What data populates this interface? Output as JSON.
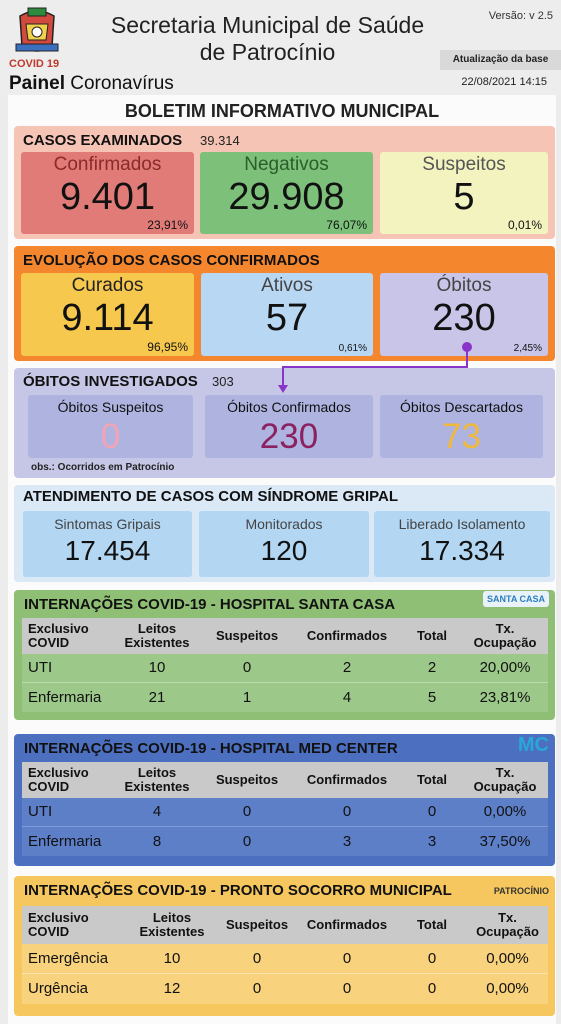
{
  "header": {
    "covid_tag": "COVID 19",
    "painel_bold": "Painel",
    "painel_rest": "Coronavírus",
    "title_line1": "Secretaria Municipal de Saúde",
    "title_line2": "de Patrocínio",
    "version": "Versão: v 2.5",
    "update_label": "Atualização da base",
    "update_date": "22/08/2021 14:15"
  },
  "board_title": "BOLETIM INFORMATIVO MUNICIPAL",
  "casos_examinados": {
    "title": "CASOS EXAMINADOS",
    "total": "39.314",
    "cards": [
      {
        "label": "Confirmados",
        "value": "9.401",
        "pct": "23,91%"
      },
      {
        "label": "Negativos",
        "value": "29.908",
        "pct": "76,07%"
      },
      {
        "label": "Suspeitos",
        "value": "5",
        "pct": "0,01%"
      }
    ]
  },
  "evolucao": {
    "title": "EVOLUÇÃO DOS CASOS CONFIRMADOS",
    "cards": [
      {
        "label": "Curados",
        "value": "9.114",
        "pct": "96,95%"
      },
      {
        "label": "Ativos",
        "value": "57",
        "pct": "0,61%"
      },
      {
        "label": "Óbitos",
        "value": "230",
        "pct": "2,45%"
      }
    ]
  },
  "obitos": {
    "title": "ÓBITOS INVESTIGADOS",
    "total": "303",
    "note": "obs.: Ocorridos em Patrocínio",
    "cards": [
      {
        "label": "Óbitos Suspeitos",
        "value": "0"
      },
      {
        "label": "Óbitos Confirmados",
        "value": "230"
      },
      {
        "label": "Óbitos Descartados",
        "value": "73"
      }
    ]
  },
  "sindrome": {
    "title": "ATENDIMENTO DE CASOS COM SÍNDROME GRIPAL",
    "cards": [
      {
        "label": "Sintomas Gripais",
        "value": "17.454"
      },
      {
        "label": "Monitorados",
        "value": "120"
      },
      {
        "label": "Liberado Isolamento",
        "value": "17.334"
      }
    ]
  },
  "hospitals": [
    {
      "title": "INTERNAÇÕES COVID-19 - HOSPITAL SANTA CASA",
      "logo_text": "SANTA CASA",
      "headers": [
        [
          "Exclusivo",
          "COVID"
        ],
        [
          "Leitos",
          "Existentes"
        ],
        [
          "Suspeitos",
          ""
        ],
        [
          "Confirmados",
          ""
        ],
        [
          "Total",
          ""
        ],
        [
          "Tx.",
          "Ocupação"
        ]
      ],
      "rows": [
        [
          "UTI",
          "10",
          "0",
          "2",
          "2",
          "20,00%"
        ],
        [
          "Enfermaria",
          "21",
          "1",
          "4",
          "5",
          "23,81%"
        ]
      ]
    },
    {
      "title": "INTERNAÇÕES COVID-19 - HOSPITAL MED CENTER",
      "logo_text": "MC",
      "headers": [
        [
          "Exclusivo",
          "COVID"
        ],
        [
          "Leitos",
          "Existentes"
        ],
        [
          "Suspeitos",
          ""
        ],
        [
          "Confirmados",
          ""
        ],
        [
          "Total",
          ""
        ],
        [
          "Tx.",
          "Ocupação"
        ]
      ],
      "rows": [
        [
          "UTI",
          "4",
          "0",
          "0",
          "0",
          "0,00%"
        ],
        [
          "Enfermaria",
          "8",
          "0",
          "3",
          "3",
          "37,50%"
        ]
      ]
    },
    {
      "title": "INTERNAÇÕES COVID-19 - PRONTO SOCORRO MUNICIPAL",
      "logo_text": "PATROCÍNIO",
      "headers": [
        [
          "Exclusivo",
          "COVID"
        ],
        [
          "Leitos",
          "Existentes"
        ],
        [
          "Suspeitos",
          ""
        ],
        [
          "Confirmados",
          ""
        ],
        [
          "Total",
          ""
        ],
        [
          "Tx.",
          "Ocupação"
        ]
      ],
      "rows": [
        [
          "Emergência",
          "10",
          "0",
          "0",
          "0",
          "0,00%"
        ],
        [
          "Urgência",
          "12",
          "0",
          "0",
          "0",
          "0,00%"
        ]
      ]
    }
  ],
  "colors": {
    "exam_bg": "#f6c4b4",
    "confirm_card": "#e07b78",
    "negativos_card": "#7cc07a",
    "suspeitos_card": "#f2f3bf",
    "evol_bg": "#f4862e",
    "curados_card": "#f6c84d",
    "ativos_card": "#b8d7f3",
    "obitos_card": "#c9c5e8",
    "obitos_bg": "#c6c7e6",
    "obitos_card_inner": "#aeb3e0",
    "sindrome_bg": "#dbe9f7",
    "sindrome_card": "#b3d6f3",
    "santa_bg": "#8fbe75",
    "santa_row": "#9cc88a",
    "med_bg": "#4c6fbf",
    "med_row": "#5d7fc8",
    "ps_bg": "#f6c75e",
    "ps_row": "#f8d27c",
    "arrow": "#8a35c9"
  }
}
